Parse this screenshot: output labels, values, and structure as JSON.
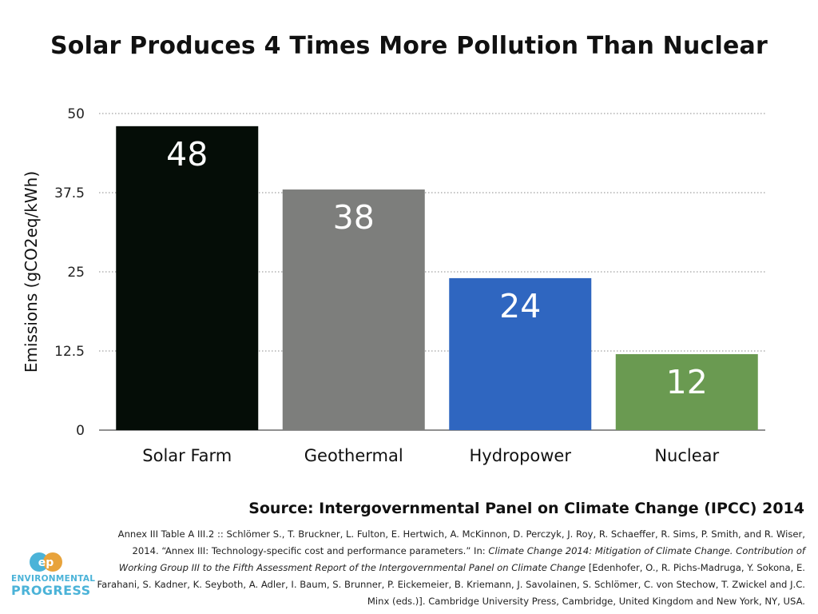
{
  "chart_data": {
    "type": "bar",
    "title": "Solar Produces 4 Times More Pollution Than Nuclear",
    "ylabel": "Emissions (gCO2eq/kWh)",
    "xlabel": "",
    "ylim": [
      0,
      50
    ],
    "yticks": [
      0,
      12.5,
      25,
      37.5,
      50
    ],
    "ytick_labels": [
      "0",
      "12.5",
      "25",
      "37.5",
      "50"
    ],
    "categories": [
      "Solar Farm",
      "Geothermal",
      "Hydropower",
      "Nuclear"
    ],
    "values": [
      48,
      38,
      24,
      12
    ],
    "data_labels": [
      "48",
      "38",
      "24",
      "12"
    ],
    "colors": [
      "#050d07",
      "#7d7e7c",
      "#2f66c0",
      "#6a9a51"
    ],
    "grid": true,
    "legend": "none"
  },
  "source": {
    "title": "Source: Intergovernmental Panel on Climate Change (IPCC) 2014",
    "line_1": "Annex III Table A III.2 :: Schlömer S., T. Bruckner, L. Fulton, E. Hertwich, A. McKinnon, D. Perczyk, J. Roy, R. Schaeffer, R. Sims, P. Smith, and R. Wiser, 2014. “Annex III: Technology-specific cost and performance parameters.” In:",
    "book_title": "Climate Change 2014: Mitigation of Climate Change. Contribution of Working Group III to the Fifth Assessment Report of the Intergovernmental Panel on Climate Change",
    "line_2": "[Edenhofer, O., R. Pichs-Madruga, Y. Sokona, E. Farahani, S. Kadner, K. Seyboth, A. Adler, I. Baum, S. Brunner, P. Eickemeier, B. Kriemann, J. Savolainen, S. Schlömer, C. von Stechow, T. Zwickel and J.C. Minx (eds.)]. Cambridge University Press, Cambridge, United Kingdom and New York, NY, USA."
  },
  "logo": {
    "mark": "ep",
    "line1": "ENVIRONMENTAL",
    "line2": "PROGRESS",
    "icon": "environmental-progress-logo-icon",
    "color": "#4bb3d8"
  }
}
